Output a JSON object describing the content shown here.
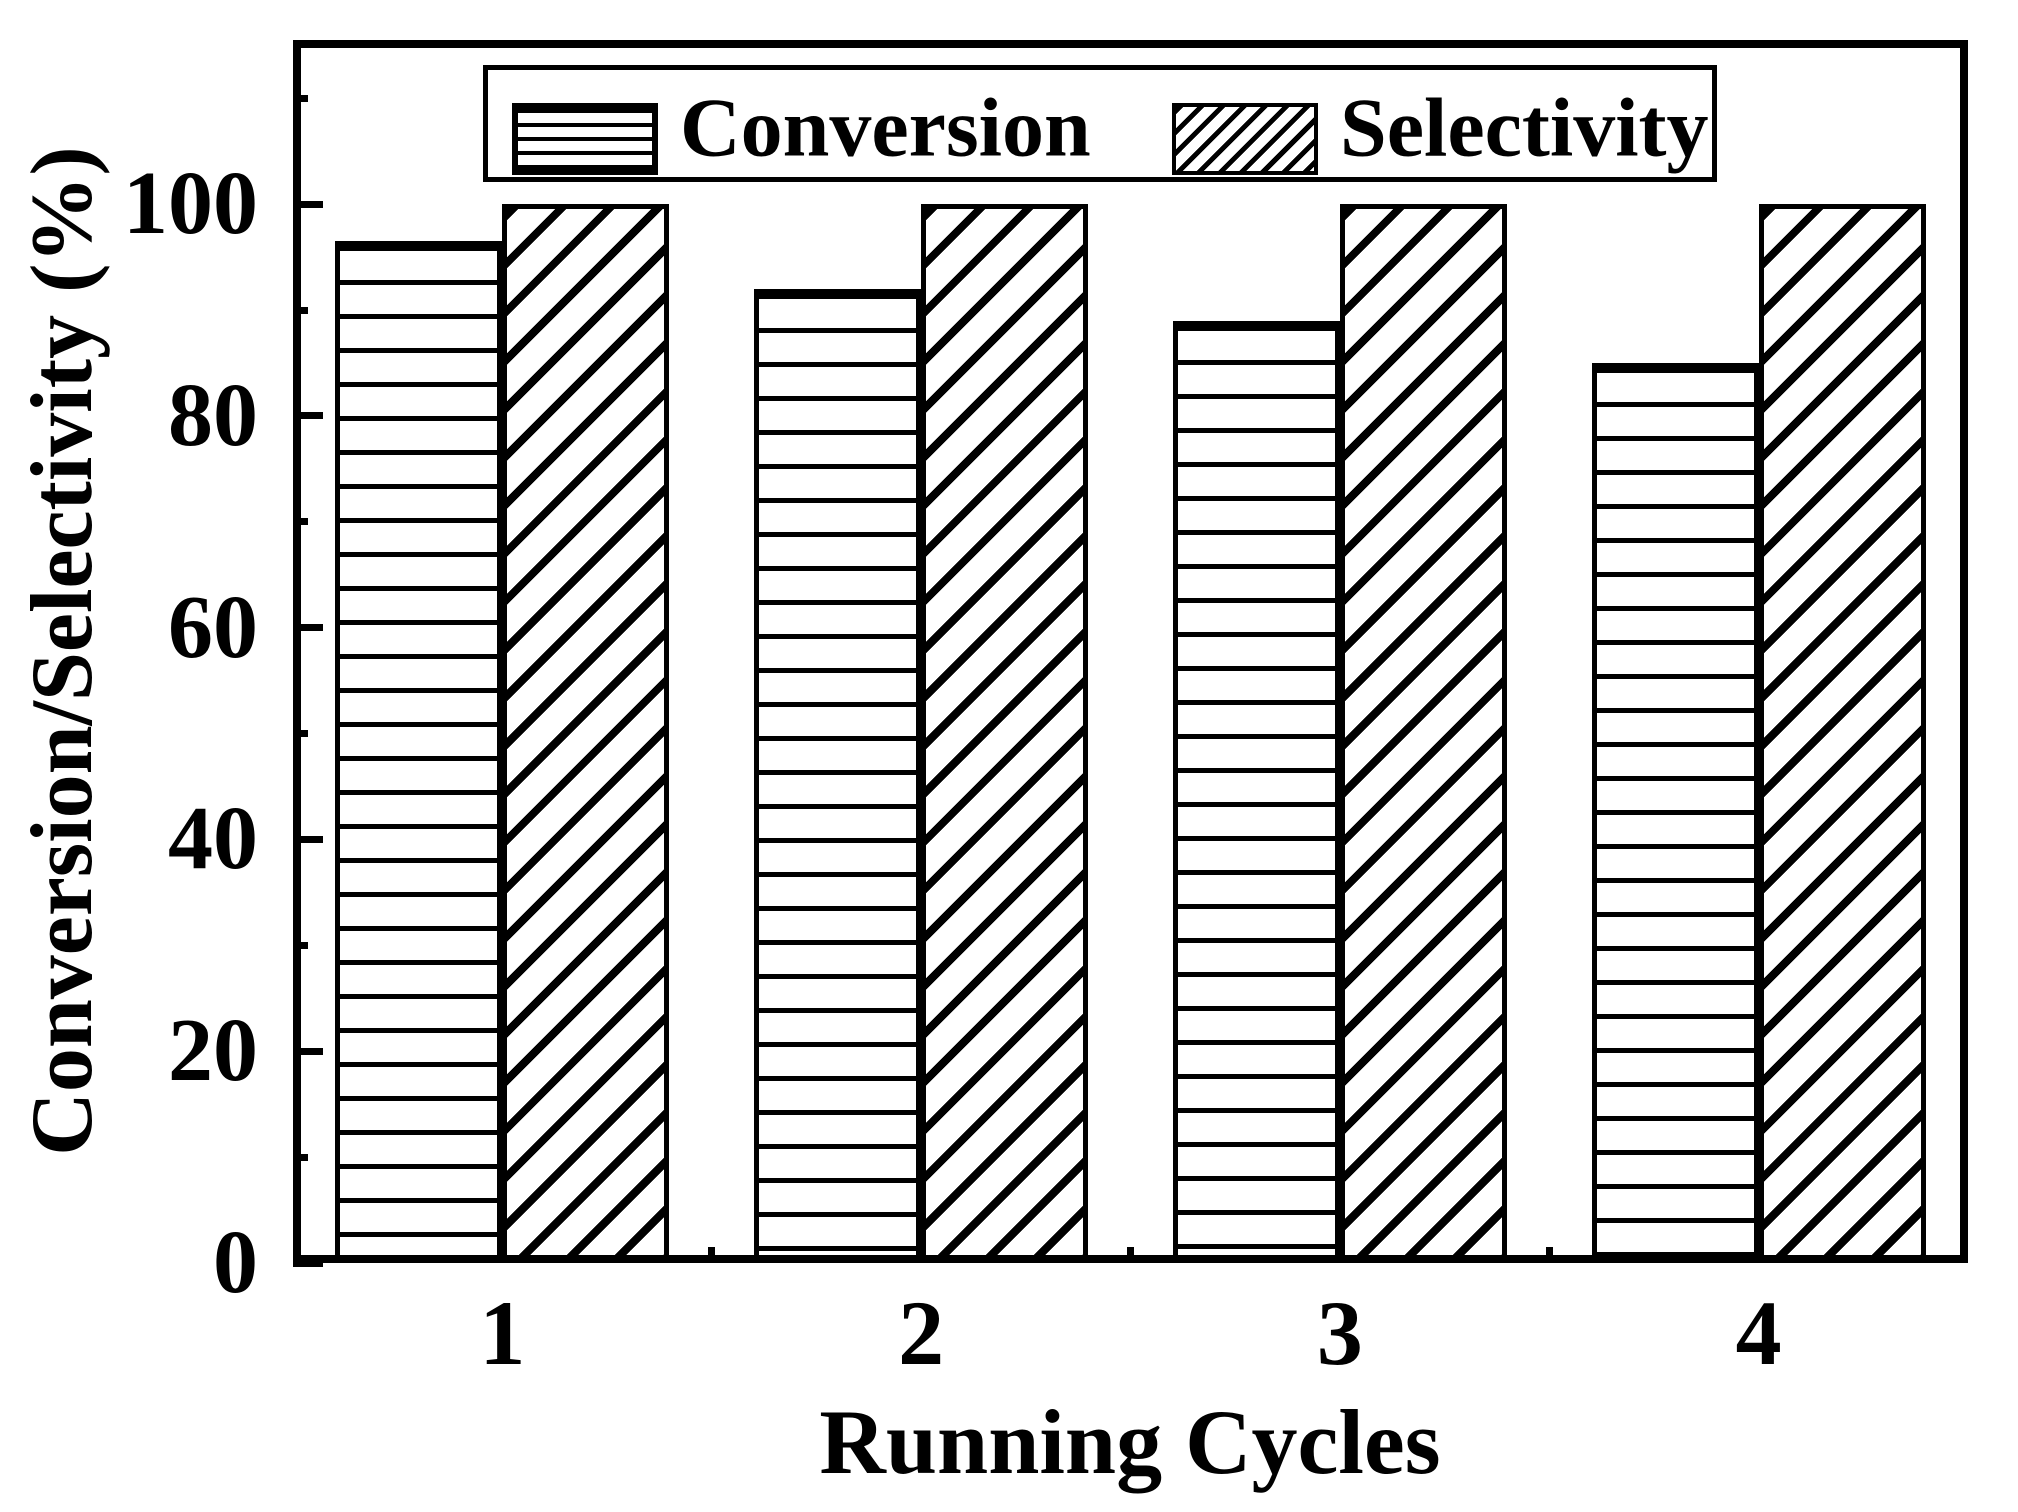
{
  "chart_data": {
    "type": "bar",
    "title": "",
    "categories": [
      "1",
      "2",
      "3",
      "4"
    ],
    "series": [
      {
        "name": "Conversion",
        "hatch": "horizontal-lines",
        "values": [
          96.5,
          92,
          89,
          85
        ]
      },
      {
        "name": "Selectivity",
        "hatch": "diagonal-lines",
        "values": [
          100,
          100,
          100,
          100
        ]
      }
    ],
    "xlabel": "Running Cycles",
    "ylabel": "Conversion/Selectivity (%)",
    "ylim": [
      0,
      115.5
    ],
    "y_major_ticks": [
      0,
      20,
      40,
      60,
      80,
      100
    ],
    "y_minor_ticks": [
      10,
      30,
      50,
      70,
      90,
      110
    ],
    "grid": false,
    "legend_position": "top-center-inside",
    "bar_fill_color": "#ffffff",
    "ink_color": "#000000",
    "background_color": "#ffffff"
  }
}
